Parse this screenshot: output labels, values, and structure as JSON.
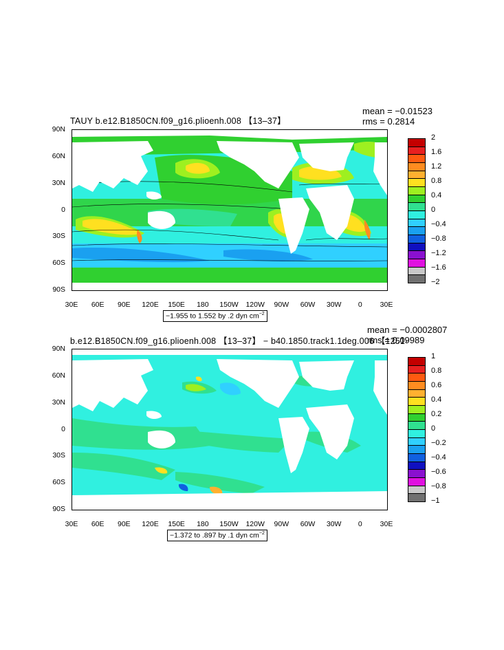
{
  "panels": [
    {
      "title": "TAUY b.e12.B1850CN.f09_g16.plioenh.008 【13–37】",
      "mean": "mean = −0.01523",
      "rms": "rms = 0.2814",
      "range": "−1.955 to 1.552 by .2 dyn cm",
      "range_sup": "−2",
      "y_labels": [
        "90N",
        "60N",
        "30N",
        "0",
        "30S",
        "60S",
        "90S"
      ],
      "x_labels": [
        "30E",
        "60E",
        "90E",
        "120E",
        "150E",
        "180",
        "150W",
        "120W",
        "90W",
        "60W",
        "30W",
        "0",
        "30E"
      ],
      "colorbar": {
        "labels": [
          "2",
          "1.6",
          "1.2",
          "0.8",
          "0.4",
          "0",
          "−0.4",
          "−0.8",
          "−1.2",
          "−1.6",
          "−2"
        ],
        "colors": [
          "#c40000",
          "#e82020",
          "#ff5a10",
          "#ff8c20",
          "#ffb030",
          "#ffe020",
          "#9ef020",
          "#30d030",
          "#30e090",
          "#30f0e0",
          "#30d0ff",
          "#1aa0f0",
          "#1060e0",
          "#1010c0",
          "#8a10d0",
          "#e010e0",
          "#c8c8c8",
          "#707070"
        ]
      }
    },
    {
      "title": "b.e12.B1850CN.f09_g16.plioenh.008 【13–37】 − b40.1850.track1.1deg.006 【1251·",
      "mean": "mean = −0.0002807",
      "rms": "rms = 0.09989",
      "range": "−1.372 to .897 by .1 dyn cm",
      "range_sup": "−2",
      "y_labels": [
        "90N",
        "60N",
        "30N",
        "0",
        "30S",
        "60S",
        "90S"
      ],
      "x_labels": [
        "30E",
        "60E",
        "90E",
        "120E",
        "150E",
        "180",
        "150W",
        "120W",
        "90W",
        "60W",
        "30W",
        "0",
        "30E"
      ],
      "colorbar": {
        "labels": [
          "1",
          "0.8",
          "0.6",
          "0.4",
          "0.2",
          "0",
          "−0.2",
          "−0.4",
          "−0.6",
          "−0.8",
          "−1"
        ],
        "colors": [
          "#c40000",
          "#e82020",
          "#ff5a10",
          "#ff8c20",
          "#ffb030",
          "#ffe020",
          "#9ef020",
          "#30d030",
          "#30e090",
          "#30f0e0",
          "#30d0ff",
          "#1aa0f0",
          "#1060e0",
          "#1010c0",
          "#8a10d0",
          "#e010e0",
          "#c8c8c8",
          "#707070"
        ]
      }
    }
  ]
}
